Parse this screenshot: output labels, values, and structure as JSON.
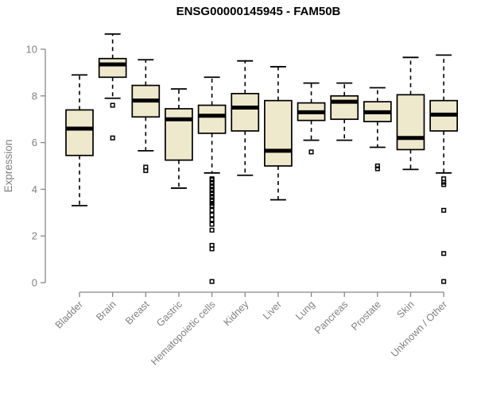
{
  "title": "ENSG00000145945 - FAM50B",
  "chart_data": {
    "type": "boxplot",
    "title": "ENSG00000145945 - FAM50B",
    "xlabel": "",
    "ylabel": "Expression",
    "ylim": [
      0,
      10.8
    ],
    "yticks": [
      0,
      2,
      4,
      6,
      8,
      10
    ],
    "grid": false,
    "legend": false,
    "colors": {
      "box_fill": "#EEE8CD",
      "box_stroke": "#000000",
      "median": "#000000",
      "whisker": "#000000",
      "axis": "#888888",
      "label": "#808080",
      "title": "#000000",
      "background": "#ffffff"
    },
    "categories": [
      "Bladder",
      "Brain",
      "Breast",
      "Gastric",
      "Hematopoietic cells",
      "Kidney",
      "Liver",
      "Lung",
      "Pancreas",
      "Prostate",
      "Skin",
      "Unknown / Other"
    ],
    "series": [
      {
        "category": "Bladder",
        "whisker_low": 3.3,
        "q1": 5.45,
        "median": 6.6,
        "q3": 7.4,
        "whisker_high": 8.9,
        "outliers": []
      },
      {
        "category": "Brain",
        "whisker_low": 7.9,
        "q1": 8.8,
        "median": 9.35,
        "q3": 9.6,
        "whisker_high": 10.65,
        "outliers": [
          7.6,
          6.2
        ]
      },
      {
        "category": "Breast",
        "whisker_low": 5.65,
        "q1": 7.1,
        "median": 7.8,
        "q3": 8.45,
        "whisker_high": 9.55,
        "outliers": [
          4.95,
          4.8
        ]
      },
      {
        "category": "Gastric",
        "whisker_low": 4.05,
        "q1": 5.25,
        "median": 7.0,
        "q3": 7.45,
        "whisker_high": 8.3,
        "outliers": []
      },
      {
        "category": "Hematopoietic cells",
        "whisker_low": 4.7,
        "q1": 6.4,
        "median": 7.15,
        "q3": 7.6,
        "whisker_high": 8.8,
        "outliers": [
          4.45,
          4.4,
          4.3,
          4.25,
          4.15,
          4.1,
          4.0,
          3.95,
          3.85,
          3.8,
          3.7,
          3.65,
          3.55,
          3.5,
          3.4,
          3.3,
          3.1,
          2.9,
          2.7,
          2.5,
          2.25,
          1.6,
          1.45,
          0.05
        ]
      },
      {
        "category": "Kidney",
        "whisker_low": 4.6,
        "q1": 6.5,
        "median": 7.5,
        "q3": 8.1,
        "whisker_high": 9.5,
        "outliers": []
      },
      {
        "category": "Liver",
        "whisker_low": 3.55,
        "q1": 5.0,
        "median": 5.65,
        "q3": 7.8,
        "whisker_high": 9.25,
        "outliers": []
      },
      {
        "category": "Lung",
        "whisker_low": 6.1,
        "q1": 6.95,
        "median": 7.3,
        "q3": 7.7,
        "whisker_high": 8.55,
        "outliers": [
          5.6
        ]
      },
      {
        "category": "Pancreas",
        "whisker_low": 6.1,
        "q1": 7.0,
        "median": 7.75,
        "q3": 8.0,
        "whisker_high": 8.55,
        "outliers": []
      },
      {
        "category": "Prostate",
        "whisker_low": 5.8,
        "q1": 6.9,
        "median": 7.3,
        "q3": 7.75,
        "whisker_high": 8.35,
        "outliers": [
          5.0,
          4.88
        ]
      },
      {
        "category": "Skin",
        "whisker_low": 4.85,
        "q1": 5.7,
        "median": 6.2,
        "q3": 8.05,
        "whisker_high": 9.65,
        "outliers": []
      },
      {
        "category": "Unknown / Other",
        "whisker_low": 4.7,
        "q1": 6.5,
        "median": 7.2,
        "q3": 7.8,
        "whisker_high": 9.75,
        "outliers": [
          4.45,
          4.3,
          4.2,
          3.1,
          1.25,
          0.05
        ]
      }
    ]
  }
}
